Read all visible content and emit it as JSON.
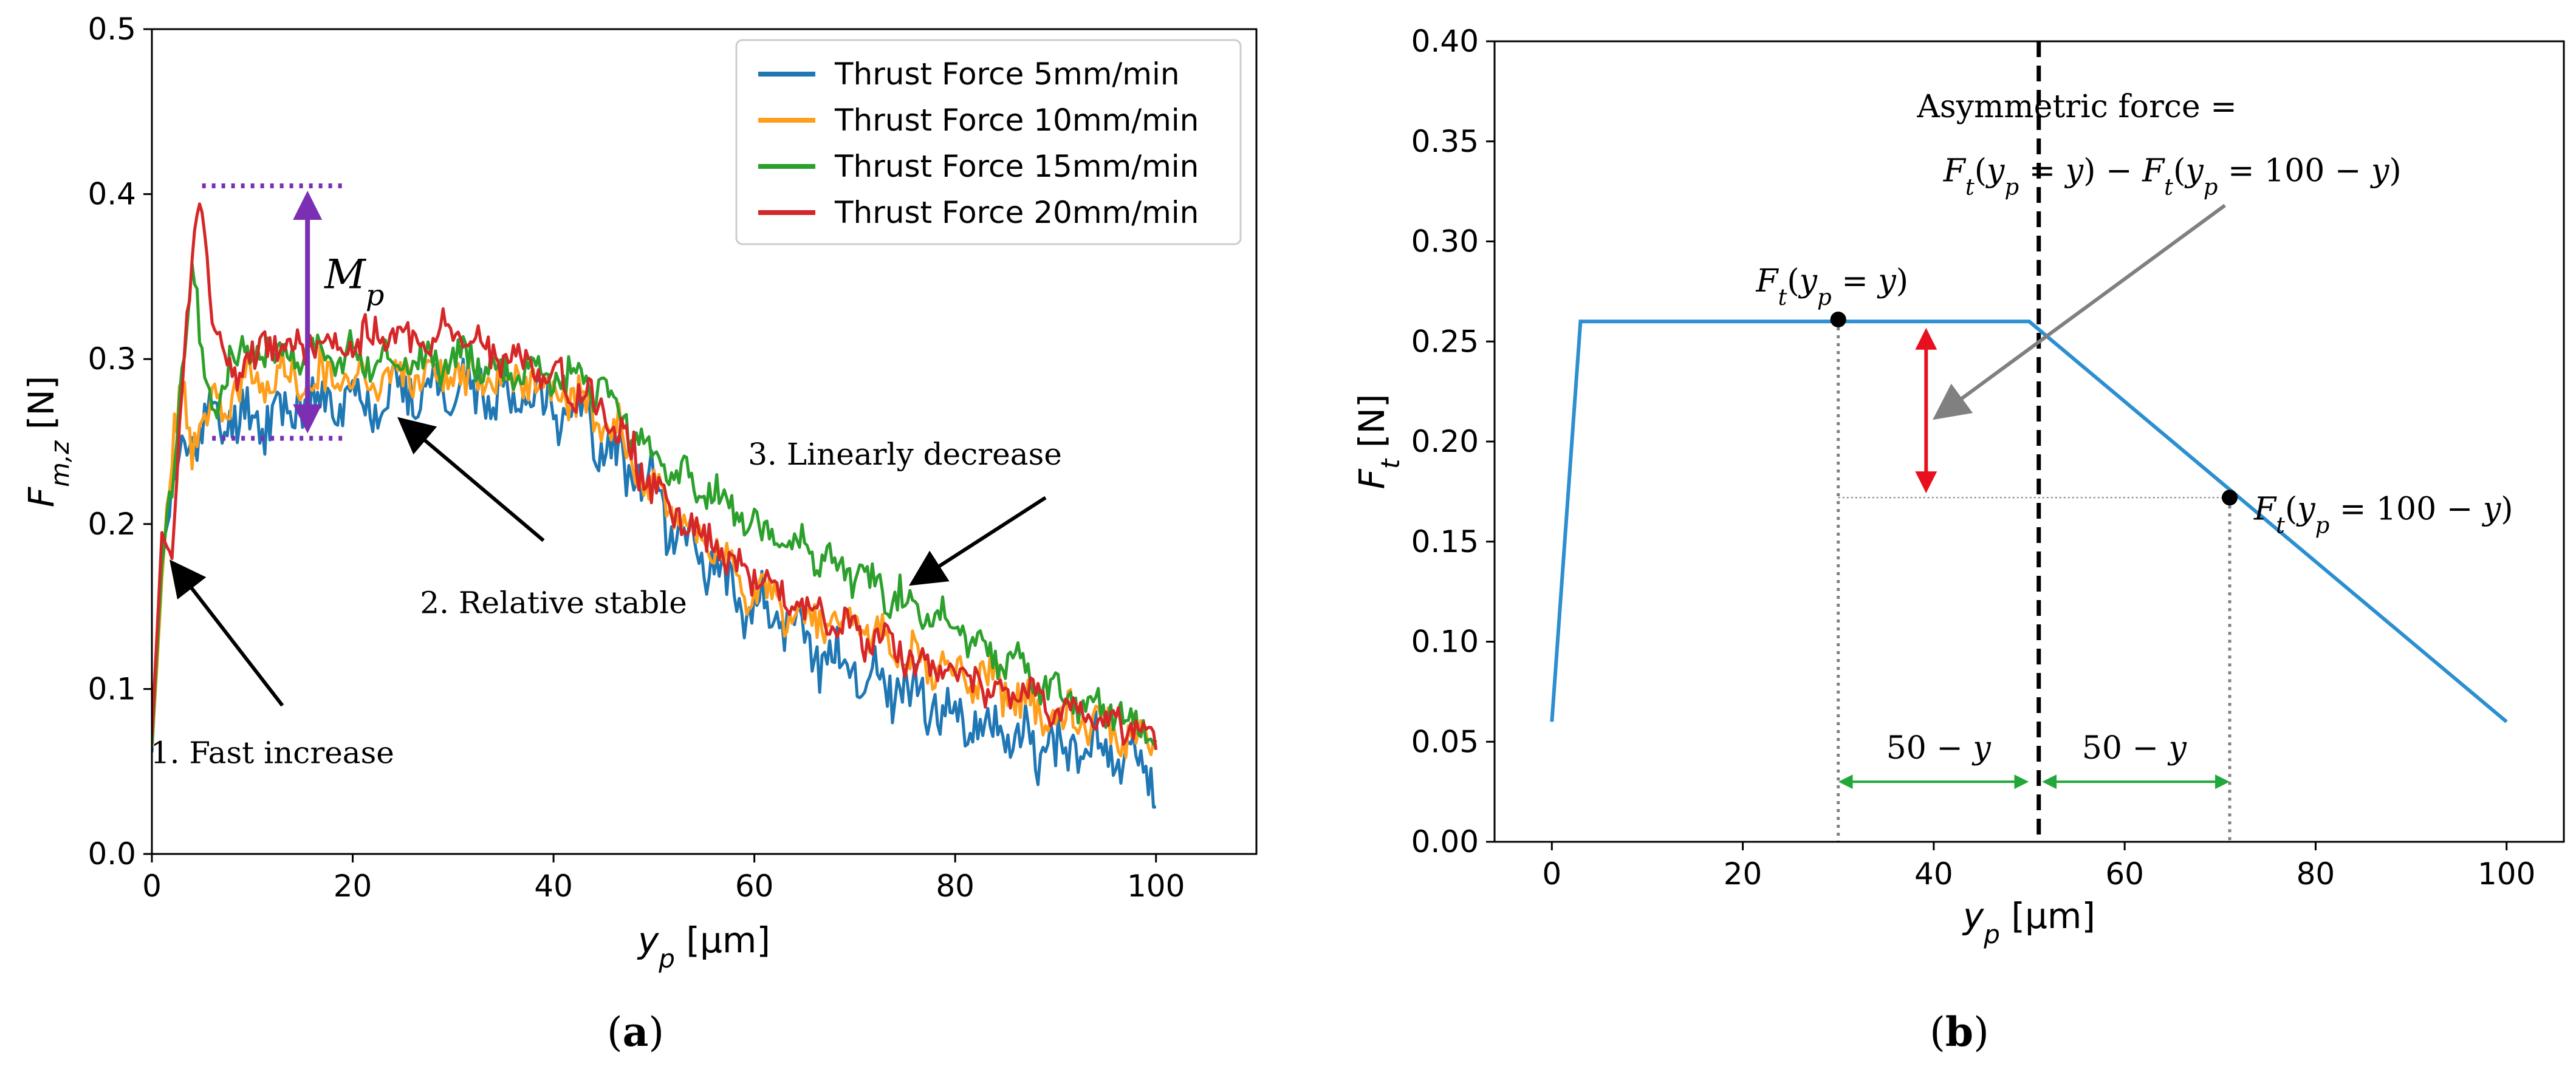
{
  "colors": {
    "blue": "#1f77b4",
    "orange": "#ff9e1b",
    "green": "#2ca02c",
    "red": "#d62728",
    "purple": "#7b2fb3",
    "mp_red": "#c00000",
    "gray_arrow": "#808080",
    "dim_green": "#22a83a",
    "dim_text_green": "#5aa02c",
    "bright_red": "#e8101e",
    "line_b": "#2b8fd0"
  },
  "chart_data": [
    {
      "type": "line",
      "panel_label": "(a)",
      "panel_letter": "a",
      "xlabel": "y_p [μm]",
      "ylabel": "F_m,z [N]",
      "xlim": [
        0,
        110
      ],
      "ylim": [
        0,
        0.5
      ],
      "xticks": [
        0,
        20,
        40,
        60,
        80,
        100
      ],
      "yticks": [
        0.0,
        0.1,
        0.2,
        0.3,
        0.4,
        0.5
      ],
      "xtick_labels": [
        "0",
        "20",
        "40",
        "60",
        "80",
        "100"
      ],
      "ytick_labels": [
        "0.0",
        "0.1",
        "0.2",
        "0.3",
        "0.4",
        "0.5"
      ],
      "legend_position": "top-right",
      "series": [
        {
          "name": "Thrust Force 5mm/min",
          "color_key": "blue",
          "noise": 0.014,
          "seed": 11,
          "points": [
            [
              0,
              0.07
            ],
            [
              1,
              0.18
            ],
            [
              2,
              0.21
            ],
            [
              3,
              0.25
            ],
            [
              5,
              0.26
            ],
            [
              8,
              0.265
            ],
            [
              15,
              0.27
            ],
            [
              25,
              0.28
            ],
            [
              35,
              0.28
            ],
            [
              42,
              0.27
            ],
            [
              48,
              0.23
            ],
            [
              55,
              0.18
            ],
            [
              60,
              0.15
            ],
            [
              65,
              0.13
            ],
            [
              70,
              0.11
            ],
            [
              75,
              0.1
            ],
            [
              80,
              0.085
            ],
            [
              85,
              0.07
            ],
            [
              90,
              0.065
            ],
            [
              95,
              0.06
            ],
            [
              100,
              0.05
            ]
          ]
        },
        {
          "name": "Thrust Force 10mm/min",
          "color_key": "orange",
          "noise": 0.011,
          "seed": 23,
          "points": [
            [
              0,
              0.07
            ],
            [
              1,
              0.17
            ],
            [
              2,
              0.24
            ],
            [
              3,
              0.28
            ],
            [
              4,
              0.25
            ],
            [
              6,
              0.27
            ],
            [
              10,
              0.285
            ],
            [
              20,
              0.29
            ],
            [
              30,
              0.29
            ],
            [
              40,
              0.285
            ],
            [
              45,
              0.265
            ],
            [
              50,
              0.22
            ],
            [
              55,
              0.19
            ],
            [
              60,
              0.16
            ],
            [
              65,
              0.145
            ],
            [
              70,
              0.14
            ],
            [
              75,
              0.12
            ],
            [
              80,
              0.11
            ],
            [
              85,
              0.1
            ],
            [
              90,
              0.085
            ],
            [
              95,
              0.075
            ],
            [
              100,
              0.07
            ]
          ]
        },
        {
          "name": "Thrust Force 15mm/min",
          "color_key": "green",
          "noise": 0.009,
          "seed": 37,
          "points": [
            [
              0,
              0.07
            ],
            [
              1,
              0.17
            ],
            [
              2,
              0.22
            ],
            [
              3,
              0.29
            ],
            [
              4,
              0.355
            ],
            [
              5,
              0.3
            ],
            [
              6,
              0.27
            ],
            [
              8,
              0.3
            ],
            [
              12,
              0.305
            ],
            [
              20,
              0.3
            ],
            [
              30,
              0.3
            ],
            [
              40,
              0.29
            ],
            [
              45,
              0.28
            ],
            [
              50,
              0.24
            ],
            [
              55,
              0.22
            ],
            [
              60,
              0.2
            ],
            [
              65,
              0.185
            ],
            [
              70,
              0.17
            ],
            [
              75,
              0.155
            ],
            [
              80,
              0.14
            ],
            [
              85,
              0.115
            ],
            [
              90,
              0.1
            ],
            [
              95,
              0.085
            ],
            [
              100,
              0.07
            ]
          ]
        },
        {
          "name": "Thrust Force 20mm/min",
          "color_key": "red",
          "noise": 0.009,
          "seed": 53,
          "points": [
            [
              0,
              0.07
            ],
            [
              1,
              0.2
            ],
            [
              2,
              0.18
            ],
            [
              3,
              0.28
            ],
            [
              4,
              0.36
            ],
            [
              5,
              0.405
            ],
            [
              6,
              0.32
            ],
            [
              8,
              0.29
            ],
            [
              12,
              0.31
            ],
            [
              20,
              0.31
            ],
            [
              30,
              0.315
            ],
            [
              40,
              0.29
            ],
            [
              45,
              0.27
            ],
            [
              50,
              0.22
            ],
            [
              55,
              0.19
            ],
            [
              60,
              0.17
            ],
            [
              65,
              0.15
            ],
            [
              70,
              0.135
            ],
            [
              75,
              0.12
            ],
            [
              80,
              0.11
            ],
            [
              85,
              0.1
            ],
            [
              90,
              0.09
            ],
            [
              95,
              0.08
            ],
            [
              100,
              0.07
            ]
          ]
        }
      ],
      "annotations": [
        {
          "text": "1. Fast increase",
          "tx": 12,
          "ty": 0.055,
          "ax": 13,
          "ay": 0.09,
          "hx": 2.2,
          "hy": 0.175
        },
        {
          "text": "2. Relative stable",
          "tx": 40,
          "ty": 0.146,
          "ax": 39,
          "ay": 0.19,
          "hx": 25,
          "hy": 0.262
        },
        {
          "text": "3. Linearly decrease",
          "tx": 75,
          "ty": 0.236,
          "ax": 89,
          "ay": 0.216,
          "hx": 76,
          "hy": 0.165
        }
      ],
      "mp": {
        "label": "M",
        "sub": "p",
        "x": 15.5,
        "top": 0.405,
        "bottom": 0.252,
        "line_x0": 5,
        "line_x1": 19
      }
    },
    {
      "type": "line",
      "panel_label": "(b)",
      "panel_letter": "b",
      "xlabel": "y_p [μm]",
      "ylabel": "F_t [N]",
      "xlim": [
        -6,
        106
      ],
      "ylim": [
        0,
        0.4
      ],
      "xticks": [
        0,
        20,
        40,
        60,
        80,
        100
      ],
      "yticks": [
        0.0,
        0.05,
        0.1,
        0.15,
        0.2,
        0.25,
        0.3,
        0.35,
        0.4
      ],
      "xtick_labels": [
        "0",
        "20",
        "40",
        "60",
        "80",
        "100"
      ],
      "ytick_labels": [
        "0.00",
        "0.05",
        "0.10",
        "0.15",
        "0.20",
        "0.25",
        "0.30",
        "0.35",
        "0.40"
      ],
      "series": [
        {
          "name": "F_t",
          "color_key": "line_b",
          "points": [
            [
              0,
              0.06
            ],
            [
              3,
              0.26
            ],
            [
              50,
              0.26
            ],
            [
              100,
              0.06
            ]
          ]
        }
      ],
      "center_x": 51,
      "points": [
        {
          "x": 30,
          "y": 0.261,
          "label": "F_t(y_p = y)"
        },
        {
          "x": 71,
          "y": 0.172,
          "label": "F_t(y_p = 100 − y)"
        }
      ],
      "annotation": {
        "line1": "Asymmetric force =",
        "line2": "F_t(y_p = y) − F_t(y_p = 100 − y)"
      },
      "dimension_label": "50 − y",
      "dim_y": 0.03
    }
  ]
}
